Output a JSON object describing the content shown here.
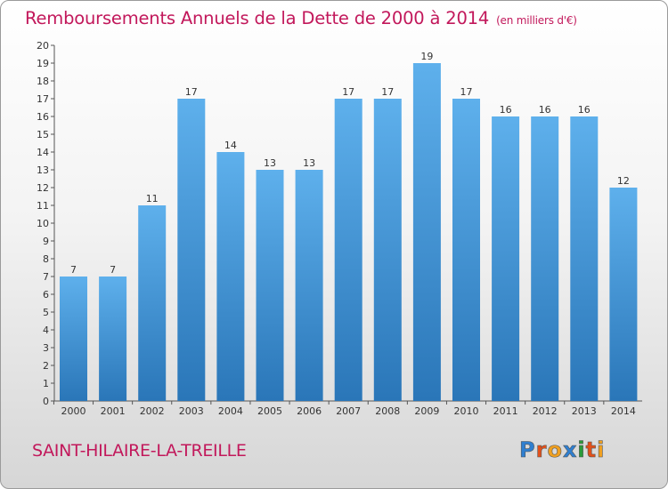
{
  "header": {
    "title": "Remboursements Annuels de la Dette de 2000 à 2014",
    "unit": "(en milliers d'€)"
  },
  "footer": {
    "commune": "SAINT-HILAIRE-LA-TREILLE",
    "logo": "Proxiti"
  },
  "colors": {
    "bar_top": "#5eb0ec",
    "bar_bottom": "#2a76b8",
    "title": "#c2185b",
    "logo": [
      "#2f7fd0",
      "#e2501a",
      "#f0a020",
      "#2f7fd0",
      "#2a9b3a",
      "#e2501a",
      "#f0a020"
    ]
  },
  "chart_data": {
    "type": "bar",
    "title": "Remboursements Annuels de la Dette de 2000 à 2014 (en milliers d'€)",
    "categories": [
      "2000",
      "2001",
      "2002",
      "2003",
      "2004",
      "2005",
      "2006",
      "2007",
      "2008",
      "2009",
      "2010",
      "2011",
      "2012",
      "2013",
      "2014"
    ],
    "values": [
      7,
      7,
      11,
      17,
      14,
      13,
      13,
      17,
      17,
      19,
      17,
      16,
      16,
      16,
      12
    ],
    "xlabel": "",
    "ylabel": "",
    "ylim": [
      0,
      20
    ],
    "yticks": [
      0,
      1,
      2,
      3,
      4,
      5,
      6,
      7,
      8,
      9,
      10,
      11,
      12,
      13,
      14,
      15,
      16,
      17,
      18,
      19,
      20
    ],
    "grid": false
  }
}
